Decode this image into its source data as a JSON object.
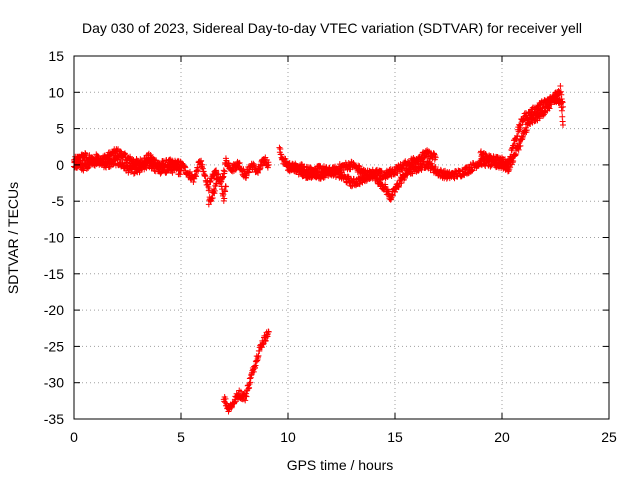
{
  "chart_data": {
    "type": "scatter",
    "title": "Day 030 of 2023, Sidereal Day-to-day VTEC variation (SDTVAR) for receiver yell",
    "xlabel": "GPS time / hours",
    "ylabel": "SDTVAR / TECUs",
    "xlim": [
      0,
      25
    ],
    "ylim": [
      -35,
      15
    ],
    "xticks": [
      0,
      5,
      10,
      15,
      20,
      25
    ],
    "yticks": [
      15,
      10,
      5,
      0,
      -5,
      -10,
      -15,
      -20,
      -25,
      -30,
      -35
    ],
    "xtick_labels": [
      "0",
      "5",
      "10",
      "15",
      "20",
      "25"
    ],
    "ytick_labels": [
      "15",
      "10",
      "5",
      "0",
      "-5",
      "-10",
      "-15",
      "-20",
      "-25",
      "-30",
      "-35"
    ],
    "grid": true,
    "marker": "+",
    "series": [
      {
        "name": "SDTVAR",
        "color": "#ff0000",
        "segments": [
          [
            [
              0.0,
              0.5
            ],
            [
              0.5,
              1.2
            ],
            [
              1.0,
              0.3
            ],
            [
              1.5,
              1.0
            ],
            [
              2.0,
              1.8
            ],
            [
              2.5,
              0.8
            ],
            [
              3.0,
              0.2
            ],
            [
              3.5,
              1.0
            ],
            [
              4.0,
              0.0
            ],
            [
              4.5,
              0.2
            ],
            [
              5.0,
              0.0
            ],
            [
              5.3,
              -1.0
            ],
            [
              5.6,
              -2.0
            ],
            [
              5.9,
              0.5
            ],
            [
              6.1,
              -1.5
            ],
            [
              6.3,
              -3.0
            ],
            [
              6.6,
              -1.0
            ],
            [
              6.9,
              -2.5
            ],
            [
              7.1,
              0.5
            ],
            [
              7.4,
              -0.5
            ],
            [
              7.7,
              0.2
            ],
            [
              8.0,
              -1.5
            ],
            [
              8.3,
              0.0
            ],
            [
              8.6,
              -1.0
            ],
            [
              8.9,
              0.8
            ],
            [
              9.1,
              0.0
            ]
          ],
          [
            [
              0.0,
              0.0
            ],
            [
              0.5,
              -0.3
            ],
            [
              1.0,
              1.0
            ],
            [
              1.5,
              0.0
            ],
            [
              2.0,
              0.5
            ],
            [
              2.5,
              -0.5
            ],
            [
              3.0,
              -0.8
            ],
            [
              3.5,
              0.2
            ],
            [
              4.0,
              -0.8
            ],
            [
              4.5,
              -0.5
            ],
            [
              5.0,
              -0.8
            ]
          ],
          [
            [
              7.0,
              -32.0
            ],
            [
              7.2,
              -33.5
            ],
            [
              7.4,
              -33.0
            ],
            [
              7.7,
              -31.5
            ],
            [
              8.0,
              -32.0
            ],
            [
              8.2,
              -30.0
            ],
            [
              8.4,
              -28.0
            ],
            [
              8.6,
              -26.0
            ],
            [
              8.8,
              -24.5
            ],
            [
              9.0,
              -23.5
            ],
            [
              9.1,
              -23.0
            ]
          ],
          [
            [
              9.6,
              2.0
            ],
            [
              9.8,
              0.5
            ],
            [
              10.0,
              0.0
            ],
            [
              10.5,
              -0.8
            ],
            [
              11.0,
              -1.5
            ],
            [
              11.5,
              -0.5
            ],
            [
              12.0,
              -1.0
            ],
            [
              12.5,
              -0.3
            ],
            [
              13.0,
              0.0
            ],
            [
              13.5,
              -1.0
            ],
            [
              14.0,
              -1.5
            ],
            [
              14.5,
              -3.0
            ],
            [
              14.8,
              -4.5
            ],
            [
              15.0,
              -3.5
            ],
            [
              15.3,
              -2.0
            ],
            [
              15.6,
              -1.0
            ],
            [
              16.0,
              -0.5
            ],
            [
              16.5,
              0.2
            ],
            [
              17.0,
              -1.0
            ],
            [
              17.5,
              -1.5
            ],
            [
              18.0,
              -1.2
            ],
            [
              18.5,
              -0.5
            ],
            [
              19.0,
              0.5
            ],
            [
              19.5,
              0.2
            ],
            [
              20.0,
              0.0
            ],
            [
              20.3,
              -0.5
            ],
            [
              20.6,
              1.5
            ],
            [
              21.0,
              4.0
            ],
            [
              21.2,
              5.5
            ],
            [
              21.6,
              6.5
            ],
            [
              22.0,
              7.5
            ],
            [
              22.3,
              8.5
            ],
            [
              22.6,
              9.0
            ],
            [
              22.8,
              8.0
            ],
            [
              22.85,
              5.5
            ]
          ],
          [
            [
              10.0,
              -0.5
            ],
            [
              10.5,
              -0.3
            ],
            [
              11.0,
              -0.8
            ],
            [
              11.5,
              -1.5
            ],
            [
              12.0,
              -0.8
            ],
            [
              12.5,
              -1.5
            ],
            [
              13.0,
              -2.5
            ],
            [
              13.5,
              -2.0
            ],
            [
              14.0,
              -1.0
            ],
            [
              14.5,
              -1.5
            ],
            [
              15.0,
              -0.8
            ],
            [
              15.5,
              0.0
            ],
            [
              16.0,
              0.8
            ],
            [
              16.5,
              1.5
            ],
            [
              16.9,
              1.0
            ]
          ],
          [
            [
              19.0,
              1.5
            ],
            [
              19.5,
              0.8
            ],
            [
              20.0,
              0.5
            ],
            [
              20.3,
              0.2
            ],
            [
              20.5,
              2.5
            ],
            [
              20.8,
              5.0
            ],
            [
              21.0,
              6.5
            ],
            [
              21.3,
              7.0
            ],
            [
              21.7,
              8.0
            ],
            [
              22.0,
              8.5
            ],
            [
              22.3,
              9.0
            ],
            [
              22.6,
              10.0
            ],
            [
              22.75,
              10.5
            ],
            [
              22.85,
              8.0
            ]
          ],
          [
            [
              6.3,
              -5.0
            ],
            [
              6.5,
              -4.0
            ],
            [
              6.7,
              -2.0
            ]
          ],
          [
            [
              6.9,
              -3.5
            ],
            [
              7.0,
              -4.5
            ],
            [
              7.1,
              -3.0
            ]
          ]
        ]
      }
    ]
  }
}
